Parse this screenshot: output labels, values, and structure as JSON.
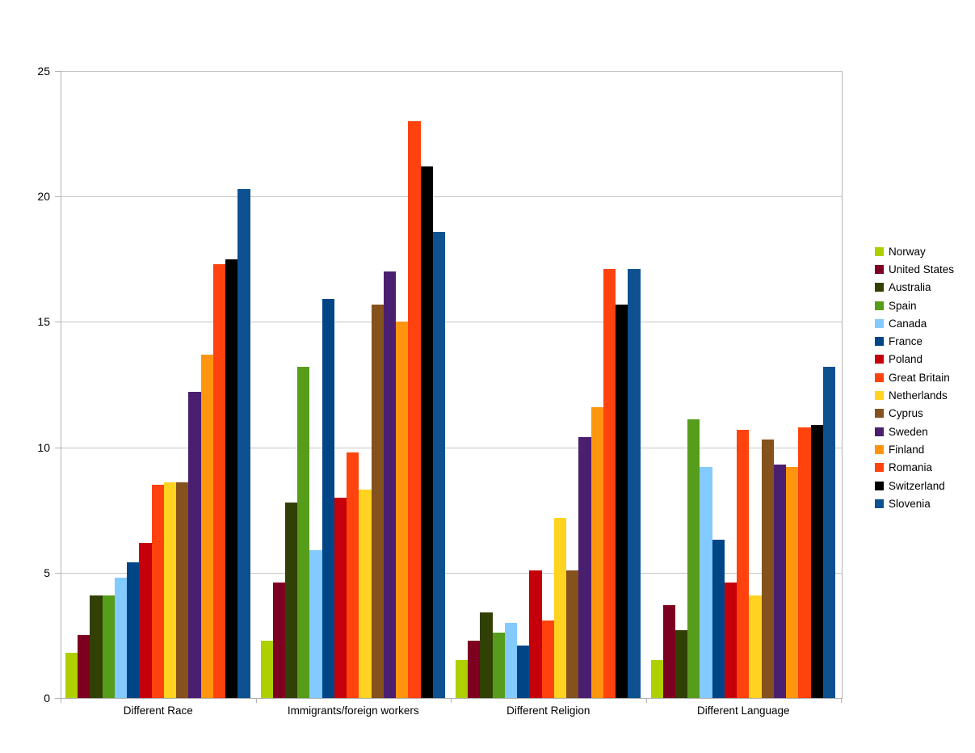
{
  "chart_data": {
    "type": "bar",
    "title": "",
    "xlabel": "",
    "ylabel": "",
    "ylim": [
      0,
      25
    ],
    "yticks": [
      0,
      5,
      10,
      15,
      20,
      25
    ],
    "grid": true,
    "legend_position": "right",
    "background_color": "#ffffff",
    "gridline_color": "#c6c6c6",
    "axis_color": "#b3b3b3",
    "categories": [
      "Different Race",
      "Immigrants/foreign workers",
      "Different Religion",
      "Different Language"
    ],
    "series": [
      {
        "name": "Norway",
        "color": "#AECF00",
        "values": [
          1.8,
          2.3,
          1.5,
          1.5
        ]
      },
      {
        "name": "United States",
        "color": "#7E0021",
        "values": [
          2.5,
          4.6,
          2.3,
          3.7
        ]
      },
      {
        "name": "Australia",
        "color": "#314004",
        "values": [
          4.1,
          7.8,
          3.4,
          2.7
        ]
      },
      {
        "name": "Spain",
        "color": "#579D1C",
        "values": [
          4.1,
          13.2,
          2.6,
          11.1
        ]
      },
      {
        "name": "Canada",
        "color": "#83CAFF",
        "values": [
          4.8,
          5.9,
          3.0,
          9.2
        ]
      },
      {
        "name": "France",
        "color": "#004586",
        "values": [
          5.4,
          15.9,
          2.1,
          6.3
        ]
      },
      {
        "name": "Poland",
        "color": "#C5000B",
        "values": [
          6.2,
          8.0,
          5.1,
          4.6
        ]
      },
      {
        "name": "Great Britain",
        "color": "#FF420E",
        "values": [
          8.5,
          9.8,
          3.1,
          10.7
        ]
      },
      {
        "name": "Netherlands",
        "color": "#FFD320",
        "values": [
          8.6,
          8.3,
          7.2,
          4.1
        ]
      },
      {
        "name": "Cyprus",
        "color": "#85511C",
        "values": [
          8.6,
          15.7,
          5.1,
          10.3
        ]
      },
      {
        "name": "Sweden",
        "color": "#4B1F6F",
        "values": [
          12.2,
          17.0,
          10.4,
          9.3
        ]
      },
      {
        "name": "Finland",
        "color": "#FF950E",
        "values": [
          13.7,
          15.0,
          11.6,
          9.2
        ]
      },
      {
        "name": "Romania",
        "color": "#FF420E",
        "values": [
          17.3,
          23.0,
          17.1,
          10.8
        ]
      },
      {
        "name": "Switzerland",
        "color": "#000000",
        "values": [
          17.5,
          21.2,
          15.7,
          10.9
        ]
      },
      {
        "name": "Slovenia",
        "color": "#0E5190",
        "values": [
          20.3,
          18.6,
          17.1,
          13.2
        ]
      }
    ]
  }
}
